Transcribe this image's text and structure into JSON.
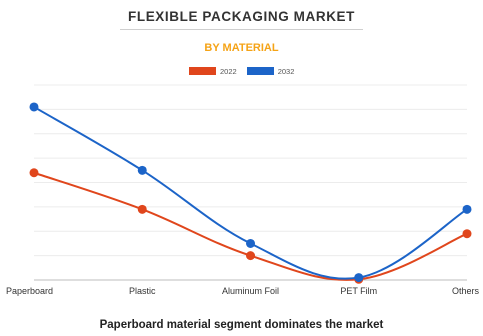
{
  "chart_data": {
    "type": "line",
    "title": "FLEXIBLE PACKAGING MARKET",
    "subtitle": "BY MATERIAL",
    "categories": [
      "Paperboard",
      "Plastic",
      "Aluminum Foil",
      "PET Film",
      "Others"
    ],
    "series": [
      {
        "name": "2022",
        "color": "#e0461c",
        "values": [
          44,
          29,
          10,
          0.3,
          19
        ]
      },
      {
        "name": "2032",
        "color": "#1c64c8",
        "values": [
          71,
          45,
          15,
          1,
          29
        ]
      }
    ],
    "ylim": [
      0,
      80
    ],
    "grid": true,
    "legend_position": "top-center",
    "footer": "Paperboard material segment dominates the market"
  }
}
